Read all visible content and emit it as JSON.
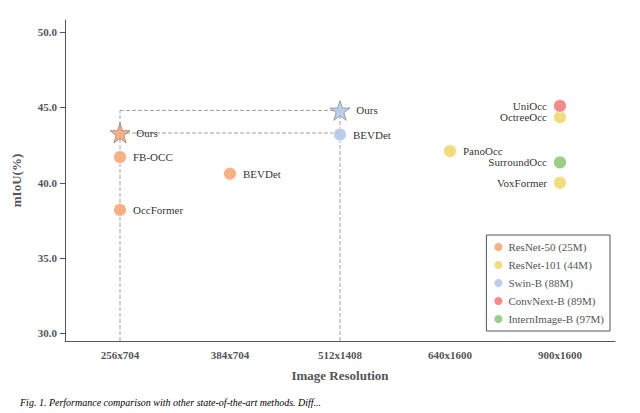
{
  "chart_data": {
    "type": "scatter",
    "xlabel": "Image Resolution",
    "ylabel": "mIoU(%)",
    "caption": "Fig. 1. Performance comparison with other state-of-the-art methods. Diff...",
    "categories": [
      "256x704",
      "384x704",
      "512x1408",
      "640x1600",
      "900x1600"
    ],
    "ylim": [
      29.5,
      50.8
    ],
    "yticks": [
      {
        "value": 30.0,
        "label": "30.0"
      },
      {
        "value": 35.0,
        "label": "35.0"
      },
      {
        "value": 40.0,
        "label": "40.0"
      },
      {
        "value": 45.0,
        "label": "45.0"
      },
      {
        "value": 50.0,
        "label": "50.0"
      }
    ],
    "grid": false,
    "legend": "lower right",
    "series": [
      {
        "name": "ResNet-50 (25M)",
        "color": "#f5a87a",
        "points": [
          {
            "x": "256x704",
            "y": 38.2,
            "label": "OccFormer",
            "marker": "circle"
          },
          {
            "x": "256x704",
            "y": 41.7,
            "label": "FB-OCC",
            "marker": "circle"
          },
          {
            "x": "256x704",
            "y": 43.3,
            "label": "Ours",
            "marker": "star"
          },
          {
            "x": "384x704",
            "y": 40.6,
            "label": "BEVDet",
            "marker": "circle"
          }
        ]
      },
      {
        "name": "ResNet-101 (44M)",
        "color": "#f0d870",
        "points": [
          {
            "x": "640x1600",
            "y": 42.1,
            "label": "PanoOcc",
            "marker": "circle"
          },
          {
            "x": "900x1600",
            "y": 44.35,
            "label": "OctreeOcc",
            "marker": "circle"
          },
          {
            "x": "900x1600",
            "y": 40.0,
            "label": "VoxFormer",
            "marker": "circle"
          }
        ]
      },
      {
        "name": "Swin-B (88M)",
        "color": "#b5c9e8",
        "points": [
          {
            "x": "512x1408",
            "y": 43.2,
            "label": "BEVDet",
            "marker": "circle"
          },
          {
            "x": "512x1408",
            "y": 44.8,
            "label": "Ours",
            "marker": "star"
          }
        ]
      },
      {
        "name": "ConvNext-B (89M)",
        "color": "#f08080",
        "points": [
          {
            "x": "900x1600",
            "y": 45.1,
            "label": "UniOcc",
            "marker": "circle"
          }
        ]
      },
      {
        "name": "InternImage-B (97M)",
        "color": "#90c97a",
        "points": [
          {
            "x": "900x1600",
            "y": 41.35,
            "label": "SurroundOcc",
            "marker": "circle"
          }
        ]
      }
    ],
    "reference_lines": [
      {
        "x": [
          "256x704",
          "512x1408"
        ],
        "y": [
          44.8,
          44.8
        ],
        "color": "gray",
        "line_style": "dashed"
      },
      {
        "x": [
          "256x704",
          "512x1408"
        ],
        "y": [
          43.3,
          43.3
        ],
        "color": "gray",
        "line_style": "dashed"
      },
      {
        "x": [
          "256x704",
          "256x704"
        ],
        "y": [
          29.5,
          44.8
        ],
        "color": "gray",
        "line_style": "dashed"
      },
      {
        "x": [
          "512x1408",
          "512x1408"
        ],
        "y": [
          29.5,
          44.8
        ],
        "color": "gray",
        "line_style": "dashed"
      }
    ]
  }
}
